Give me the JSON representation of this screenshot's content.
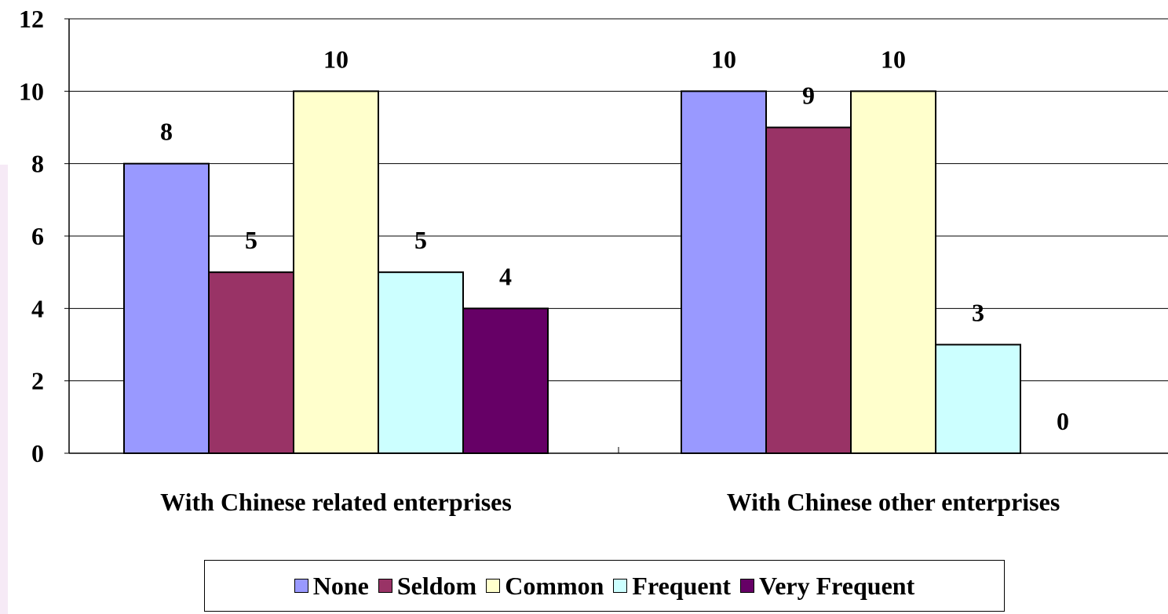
{
  "chart_data": {
    "type": "bar",
    "title": "",
    "xlabel": "",
    "ylabel": "",
    "categories": [
      "With Chinese related enterprises",
      "With Chinese other enterprises"
    ],
    "series": [
      {
        "name": "None",
        "values": [
          8,
          10
        ],
        "color": "#9999ff"
      },
      {
        "name": "Seldom",
        "values": [
          5,
          9
        ],
        "color": "#993366"
      },
      {
        "name": "Common",
        "values": [
          10,
          10
        ],
        "color": "#ffffcc"
      },
      {
        "name": "Frequent",
        "values": [
          5,
          3
        ],
        "color": "#ccffff"
      },
      {
        "name": "Very Frequent",
        "values": [
          4,
          0
        ],
        "color": "#660066"
      }
    ],
    "ylim": [
      0,
      12
    ],
    "yticks": [
      "0",
      "2",
      "4",
      "6",
      "8",
      "10",
      "12"
    ],
    "grid": true,
    "legend_position": "bottom"
  }
}
